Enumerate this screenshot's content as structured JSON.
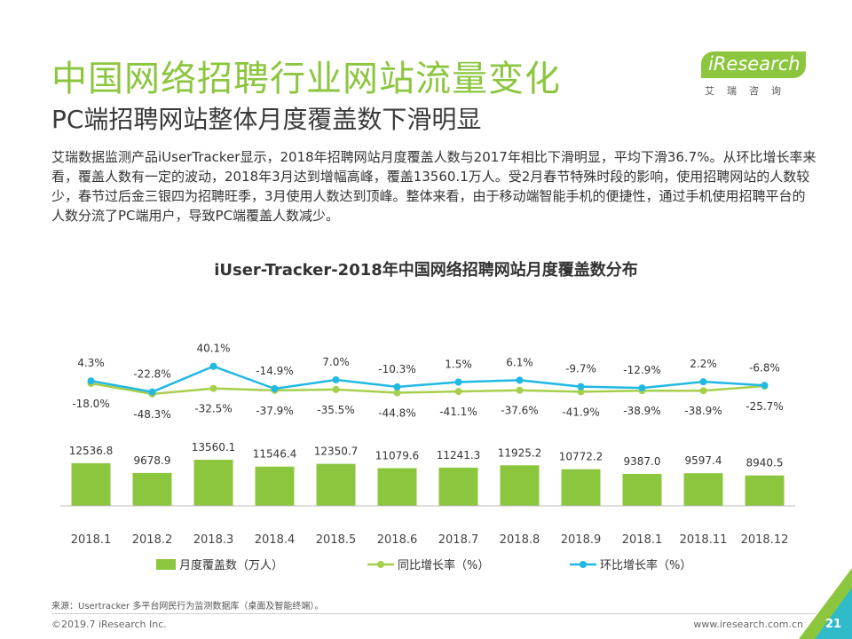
{
  "header": {
    "title": "中国网络招聘行业网站流量变化",
    "subtitle": "PC端招聘网站整体月度覆盖数下滑明显"
  },
  "logo": {
    "text": "iResearch",
    "sub": "艾瑞咨询"
  },
  "description": "艾瑞数据监测产品iUserTracker显示，2018年招聘网站月度覆盖人数与2017年相比下滑明显，平均下滑36.7%。从环比增长率来看，覆盖人数有一定的波动，2018年3月达到增幅高峰，覆盖13560.1万人。受2月春节特殊时段的影响，使用招聘网站的人数较少，春节过后金三银四为招聘旺季，3月使用人数达到顶峰。整体来看，由于移动端智能手机的便捷性，通过手机使用招聘平台的人数分流了PC端用户，导致PC端覆盖人数减少。",
  "chart_data": {
    "type": "bar",
    "title": "iUser-Tracker-2018年中国网络招聘网站月度覆盖数分布",
    "categories": [
      "2018.1",
      "2018.2",
      "2018.3",
      "2018.4",
      "2018.5",
      "2018.6",
      "2018.7",
      "2018.8",
      "2018.9",
      "2018.1",
      "2018.11",
      "2018.12"
    ],
    "series": [
      {
        "name": "月度覆盖数（万人）",
        "kind": "bar",
        "color": "#8cc63f",
        "values": [
          12536.8,
          9678.9,
          13560.1,
          11546.4,
          12350.7,
          11079.6,
          11241.3,
          11925.2,
          10772.2,
          9387.0,
          9597.4,
          8940.5
        ],
        "labels": [
          "12536.8",
          "9678.9",
          "13560.1",
          "11546.4",
          "12350.7",
          "11079.6",
          "11241.3",
          "11925.2",
          "10772.2",
          "9387.0",
          "9597.4",
          "8940.5"
        ]
      },
      {
        "name": "同比增长率（%）",
        "kind": "line",
        "color": "#a6cf4c",
        "values": [
          -18.0,
          -48.3,
          -32.5,
          -37.9,
          -35.5,
          -44.8,
          -41.1,
          -37.6,
          -41.9,
          -38.9,
          -38.9,
          -25.7
        ],
        "labels": [
          "-18.0%",
          "-48.3%",
          "-32.5%",
          "-37.9%",
          "-35.5%",
          "-44.8%",
          "-41.1%",
          "-37.6%",
          "-41.9%",
          "-38.9%",
          "-38.9%",
          "-25.7%"
        ]
      },
      {
        "name": "环比增长率（%）",
        "kind": "line",
        "color": "#21b8e3",
        "values": [
          4.3,
          -22.8,
          40.1,
          -14.9,
          7.0,
          -10.3,
          1.5,
          6.1,
          -9.7,
          -12.9,
          2.2,
          -6.8
        ],
        "labels": [
          "4.3%",
          "-22.8%",
          "40.1%",
          "-14.9%",
          "7.0%",
          "-10.3%",
          "1.5%",
          "6.1%",
          "-9.7%",
          "-12.9%",
          "2.2%",
          "-6.8%"
        ]
      }
    ],
    "legend_position": "bottom",
    "grid": false
  },
  "footer": {
    "source": "来源：Usertracker 多平台网民行为监测数据库（桌面及智能终端）。",
    "copyright": "©2019.7 iResearch Inc.",
    "site": "www.iresearch.com.cn",
    "page": "21"
  },
  "colors": {
    "accent": "#8cc63f",
    "line_blue": "#21b8e3"
  }
}
